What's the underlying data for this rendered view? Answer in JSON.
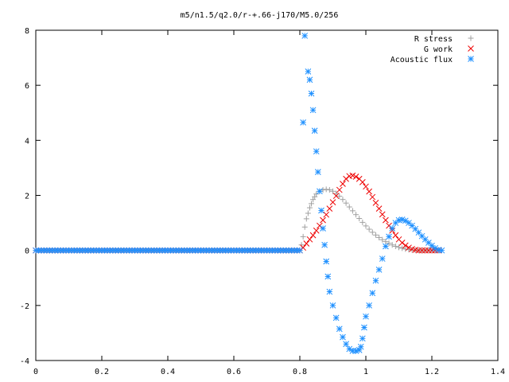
{
  "chart_data": {
    "type": "scatter",
    "title": "m5/n1.5/q2.0/r-+.66-j170/M5.0/256",
    "xlabel": "",
    "ylabel": "",
    "xlim": [
      0,
      1.4
    ],
    "ylim": [
      -4,
      8
    ],
    "x_ticks": [
      "0",
      "0.2",
      "0.4",
      "0.6",
      "0.8",
      "1",
      "1.2",
      "1.4"
    ],
    "y_ticks": [
      "-4",
      "-2",
      "0",
      "2",
      "4",
      "6",
      "8"
    ],
    "grid": false,
    "legend_position": "top-right",
    "series": [
      {
        "name": "R stress",
        "marker": "plus",
        "color": "#a0a0a0",
        "points": [
          [
            0.0,
            0.0
          ],
          [
            0.1,
            0.0
          ],
          [
            0.2,
            0.0
          ],
          [
            0.3,
            0.0
          ],
          [
            0.4,
            0.0
          ],
          [
            0.5,
            0.0
          ],
          [
            0.6,
            0.0
          ],
          [
            0.7,
            0.0
          ],
          [
            0.8,
            0.0
          ],
          [
            0.805,
            0.2
          ],
          [
            0.81,
            0.5
          ],
          [
            0.815,
            0.85
          ],
          [
            0.82,
            1.15
          ],
          [
            0.825,
            1.35
          ],
          [
            0.83,
            1.55
          ],
          [
            0.835,
            1.7
          ],
          [
            0.84,
            1.85
          ],
          [
            0.845,
            1.95
          ],
          [
            0.85,
            2.05
          ],
          [
            0.86,
            2.15
          ],
          [
            0.87,
            2.2
          ],
          [
            0.88,
            2.22
          ],
          [
            0.89,
            2.2
          ],
          [
            0.9,
            2.15
          ],
          [
            0.91,
            2.07
          ],
          [
            0.92,
            1.97
          ],
          [
            0.93,
            1.85
          ],
          [
            0.94,
            1.72
          ],
          [
            0.95,
            1.58
          ],
          [
            0.96,
            1.44
          ],
          [
            0.97,
            1.3
          ],
          [
            0.98,
            1.16
          ],
          [
            0.99,
            1.02
          ],
          [
            1.0,
            0.89
          ],
          [
            1.01,
            0.77
          ],
          [
            1.02,
            0.66
          ],
          [
            1.03,
            0.56
          ],
          [
            1.04,
            0.47
          ],
          [
            1.05,
            0.39
          ],
          [
            1.06,
            0.32
          ],
          [
            1.07,
            0.26
          ],
          [
            1.08,
            0.2
          ],
          [
            1.09,
            0.15
          ],
          [
            1.1,
            0.11
          ],
          [
            1.11,
            0.08
          ],
          [
            1.12,
            0.05
          ],
          [
            1.13,
            0.03
          ],
          [
            1.14,
            0.02
          ],
          [
            1.15,
            0.01
          ],
          [
            1.16,
            0.0
          ],
          [
            1.18,
            0.0
          ],
          [
            1.2,
            0.0
          ],
          [
            1.22,
            0.0
          ]
        ]
      },
      {
        "name": "G work",
        "marker": "cross",
        "color": "#ee0000",
        "points": [
          [
            0.0,
            0.0
          ],
          [
            0.1,
            0.0
          ],
          [
            0.2,
            0.0
          ],
          [
            0.3,
            0.0
          ],
          [
            0.4,
            0.0
          ],
          [
            0.5,
            0.0
          ],
          [
            0.6,
            0.0
          ],
          [
            0.7,
            0.0
          ],
          [
            0.8,
            0.0
          ],
          [
            0.81,
            0.1
          ],
          [
            0.82,
            0.25
          ],
          [
            0.83,
            0.4
          ],
          [
            0.84,
            0.55
          ],
          [
            0.85,
            0.72
          ],
          [
            0.86,
            0.9
          ],
          [
            0.87,
            1.1
          ],
          [
            0.88,
            1.3
          ],
          [
            0.89,
            1.52
          ],
          [
            0.9,
            1.75
          ],
          [
            0.91,
            1.98
          ],
          [
            0.92,
            2.2
          ],
          [
            0.93,
            2.42
          ],
          [
            0.94,
            2.6
          ],
          [
            0.95,
            2.7
          ],
          [
            0.96,
            2.72
          ],
          [
            0.97,
            2.68
          ],
          [
            0.98,
            2.6
          ],
          [
            0.99,
            2.48
          ],
          [
            1.0,
            2.32
          ],
          [
            1.01,
            2.14
          ],
          [
            1.02,
            1.94
          ],
          [
            1.03,
            1.73
          ],
          [
            1.04,
            1.52
          ],
          [
            1.05,
            1.31
          ],
          [
            1.06,
            1.1
          ],
          [
            1.07,
            0.9
          ],
          [
            1.08,
            0.72
          ],
          [
            1.09,
            0.55
          ],
          [
            1.1,
            0.4
          ],
          [
            1.11,
            0.28
          ],
          [
            1.12,
            0.18
          ],
          [
            1.13,
            0.1
          ],
          [
            1.14,
            0.05
          ],
          [
            1.15,
            0.02
          ],
          [
            1.16,
            0.0
          ],
          [
            1.18,
            0.0
          ],
          [
            1.2,
            0.0
          ],
          [
            1.22,
            0.0
          ]
        ]
      },
      {
        "name": "Acoustic flux",
        "marker": "star",
        "color": "#1e90ff",
        "points": [
          [
            0.0,
            0.0
          ],
          [
            0.1,
            0.0
          ],
          [
            0.2,
            0.0
          ],
          [
            0.3,
            0.0
          ],
          [
            0.4,
            0.0
          ],
          [
            0.5,
            0.0
          ],
          [
            0.6,
            0.0
          ],
          [
            0.7,
            0.0
          ],
          [
            0.8,
            0.0
          ],
          [
            0.81,
            4.65
          ],
          [
            0.815,
            7.8
          ],
          [
            0.825,
            6.5
          ],
          [
            0.83,
            6.2
          ],
          [
            0.835,
            5.7
          ],
          [
            0.84,
            5.1
          ],
          [
            0.845,
            4.35
          ],
          [
            0.85,
            3.6
          ],
          [
            0.855,
            2.85
          ],
          [
            0.86,
            2.15
          ],
          [
            0.865,
            1.45
          ],
          [
            0.87,
            0.8
          ],
          [
            0.875,
            0.2
          ],
          [
            0.88,
            -0.4
          ],
          [
            0.885,
            -0.95
          ],
          [
            0.89,
            -1.5
          ],
          [
            0.9,
            -2.0
          ],
          [
            0.91,
            -2.45
          ],
          [
            0.92,
            -2.85
          ],
          [
            0.93,
            -3.15
          ],
          [
            0.94,
            -3.4
          ],
          [
            0.95,
            -3.58
          ],
          [
            0.96,
            -3.65
          ],
          [
            0.97,
            -3.65
          ],
          [
            0.98,
            -3.62
          ],
          [
            0.985,
            -3.5
          ],
          [
            0.99,
            -3.2
          ],
          [
            0.995,
            -2.8
          ],
          [
            1.0,
            -2.4
          ],
          [
            1.01,
            -2.0
          ],
          [
            1.02,
            -1.55
          ],
          [
            1.03,
            -1.1
          ],
          [
            1.04,
            -0.7
          ],
          [
            1.05,
            -0.3
          ],
          [
            1.06,
            0.15
          ],
          [
            1.07,
            0.5
          ],
          [
            1.08,
            0.8
          ],
          [
            1.09,
            1.0
          ],
          [
            1.1,
            1.1
          ],
          [
            1.11,
            1.12
          ],
          [
            1.12,
            1.08
          ],
          [
            1.13,
            1.0
          ],
          [
            1.14,
            0.9
          ],
          [
            1.15,
            0.78
          ],
          [
            1.16,
            0.65
          ],
          [
            1.17,
            0.52
          ],
          [
            1.18,
            0.4
          ],
          [
            1.19,
            0.28
          ],
          [
            1.2,
            0.17
          ],
          [
            1.21,
            0.08
          ],
          [
            1.22,
            0.02
          ],
          [
            1.23,
            0.0
          ]
        ]
      }
    ]
  }
}
